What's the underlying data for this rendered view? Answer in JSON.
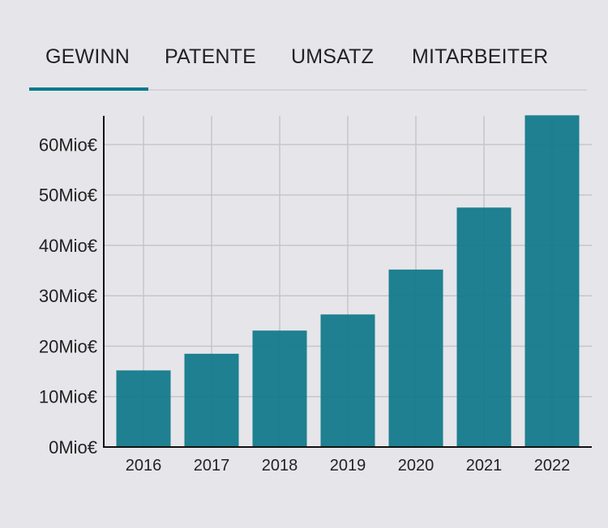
{
  "tabs": [
    {
      "label": "GEWINN",
      "active": true
    },
    {
      "label": "PATENTE"
    },
    {
      "label": "UMSATZ"
    },
    {
      "label": "MITARBEITER"
    }
  ],
  "colors": {
    "bar": "#177c8c",
    "accent": "#007a8a"
  },
  "chart_data": {
    "type": "bar",
    "categories": [
      "2016",
      "2017",
      "2018",
      "2019",
      "2020",
      "2021",
      "2022"
    ],
    "values": [
      15.2,
      18.5,
      23.1,
      26.3,
      35.2,
      47.5,
      65.8
    ],
    "unit": "Mio€",
    "yticks": [
      "0Mio€",
      "10Mio€",
      "20Mio€",
      "30Mio€",
      "40Mio€",
      "50Mio€",
      "60Mio€"
    ],
    "ylim": [
      0,
      65.7
    ],
    "grid": true
  }
}
